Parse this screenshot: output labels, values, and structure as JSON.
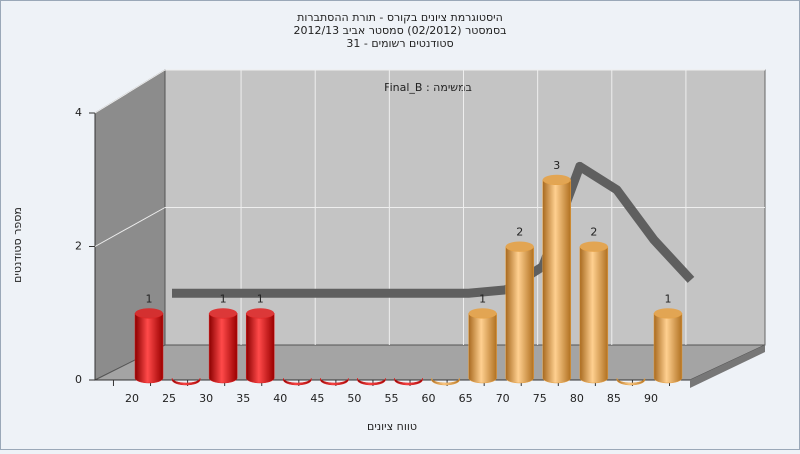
{
  "chart_data": {
    "type": "bar",
    "title": [
      "היסטוגרמת ציונים בקורס - תורת ההסתברות",
      "בסמסטר  (02/2012)  סמסטר אביב 2012/13",
      "סטודנטים רשומים - 31"
    ],
    "subtitle": "Final_B : במשימה",
    "x_label": "טווח ציונים",
    "y_label": "מספר סטודנטים",
    "categories": [
      "20",
      "25",
      "30",
      "35",
      "40",
      "45",
      "50",
      "55",
      "60",
      "65",
      "70",
      "75",
      "80",
      "85",
      "90"
    ],
    "values": [
      1,
      0,
      1,
      1,
      0,
      0,
      0,
      0,
      0,
      1,
      2,
      3,
      2,
      0,
      1
    ],
    "colors": [
      "#e02020",
      "#e02020",
      "#e02020",
      "#e02020",
      "#e02020",
      "#e02020",
      "#e02020",
      "#e02020",
      "#e8a040",
      "#e8a040",
      "#e8a040",
      "#e8a040",
      "#e8a040",
      "#e8a040",
      "#e8a040"
    ],
    "curve": {
      "color": "#5f5f5f",
      "values": [
        1.3,
        1.3,
        1.3,
        1.3,
        1.3,
        1.3,
        1.3,
        1.3,
        1.3,
        1.35,
        1.7,
        3.2,
        2.85,
        2.1,
        1.5
      ]
    },
    "ylim": [
      0,
      4
    ],
    "yticks": [
      0,
      2,
      4
    ],
    "grid": true
  }
}
